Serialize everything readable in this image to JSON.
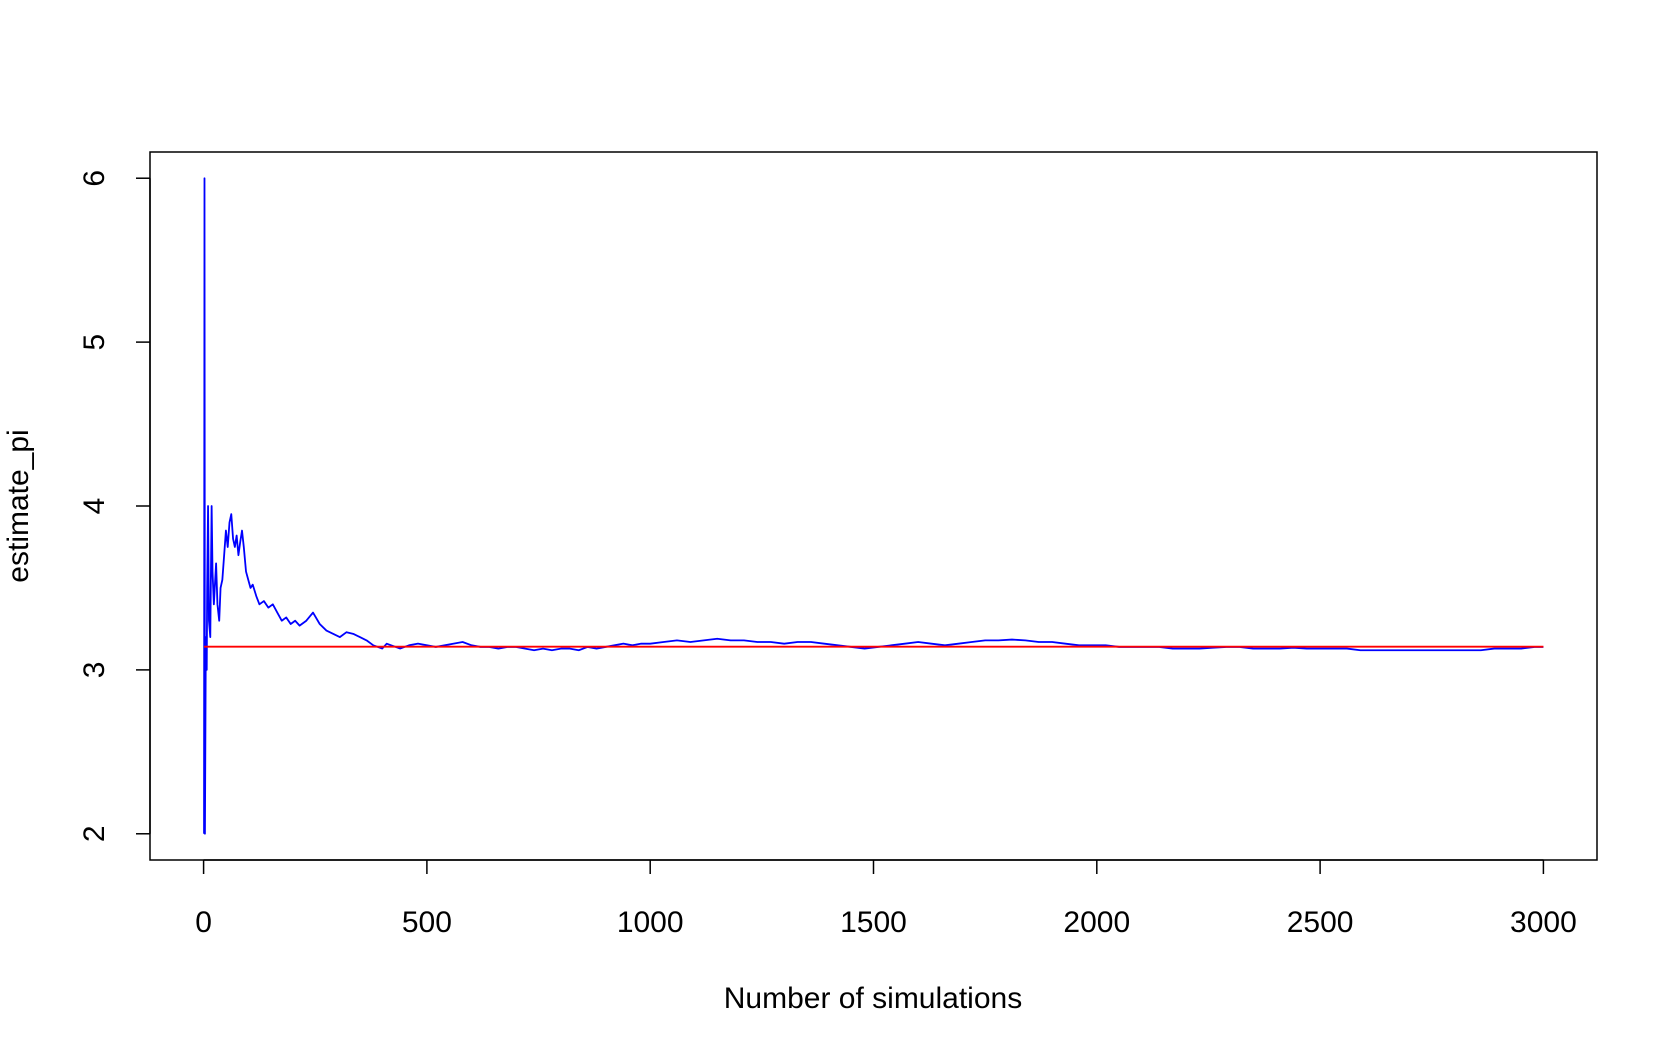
{
  "chart_data": {
    "type": "line",
    "title": "",
    "xlabel": "Number of simulations",
    "ylabel": "estimate_pi",
    "xlim": [
      -120,
      3120
    ],
    "ylim": [
      1.84,
      6.16
    ],
    "x_ticks": [
      0,
      500,
      1000,
      1500,
      2000,
      2500,
      3000
    ],
    "y_ticks": [
      2,
      3,
      4,
      5,
      6
    ],
    "x_tick_labels": [
      "0",
      "500",
      "1000",
      "1500",
      "2000",
      "2500",
      "3000"
    ],
    "y_tick_labels": [
      "2",
      "3",
      "4",
      "5",
      "6"
    ],
    "grid": false,
    "legend": "none",
    "series": [
      {
        "color": "#0000ff",
        "x": [
          1,
          2,
          3,
          5,
          7,
          8,
          10,
          12,
          15,
          18,
          20,
          23,
          25,
          28,
          31,
          35,
          38,
          42,
          46,
          50,
          54,
          58,
          62,
          66,
          70,
          74,
          78,
          82,
          86,
          90,
          95,
          100,
          105,
          110,
          118,
          125,
          135,
          145,
          155,
          165,
          175,
          185,
          195,
          205,
          215,
          230,
          245,
          260,
          275,
          290,
          305,
          320,
          335,
          350,
          365,
          380,
          390,
          400,
          410,
          420,
          430,
          440,
          450,
          460,
          480,
          500,
          520,
          540,
          560,
          580,
          600,
          620,
          640,
          660,
          680,
          700,
          720,
          740,
          760,
          780,
          800,
          820,
          840,
          860,
          880,
          900,
          920,
          940,
          960,
          980,
          1000,
          1030,
          1060,
          1090,
          1120,
          1150,
          1180,
          1210,
          1240,
          1270,
          1300,
          1330,
          1360,
          1390,
          1420,
          1450,
          1480,
          1510,
          1540,
          1570,
          1600,
          1630,
          1660,
          1690,
          1720,
          1750,
          1780,
          1810,
          1840,
          1870,
          1900,
          1930,
          1960,
          1990,
          2020,
          2050,
          2080,
          2110,
          2140,
          2170,
          2200,
          2230,
          2260,
          2290,
          2320,
          2350,
          2380,
          2410,
          2440,
          2470,
          2500,
          2530,
          2560,
          2590,
          2620,
          2650,
          2680,
          2710,
          2740,
          2770,
          2800,
          2830,
          2860,
          2890,
          2920,
          2950,
          2980,
          3000
        ],
        "y": [
          2.0,
          6.0,
          2.0,
          3.2,
          3.0,
          3.5,
          4.0,
          3.3,
          3.2,
          4.0,
          3.6,
          3.4,
          3.5,
          3.65,
          3.4,
          3.3,
          3.5,
          3.55,
          3.7,
          3.85,
          3.75,
          3.9,
          3.95,
          3.8,
          3.75,
          3.82,
          3.7,
          3.78,
          3.85,
          3.75,
          3.6,
          3.55,
          3.5,
          3.52,
          3.45,
          3.4,
          3.42,
          3.38,
          3.4,
          3.35,
          3.3,
          3.32,
          3.28,
          3.3,
          3.27,
          3.3,
          3.35,
          3.28,
          3.24,
          3.22,
          3.2,
          3.23,
          3.22,
          3.2,
          3.18,
          3.15,
          3.14,
          3.13,
          3.16,
          3.15,
          3.14,
          3.13,
          3.14,
          3.15,
          3.16,
          3.15,
          3.14,
          3.15,
          3.16,
          3.17,
          3.15,
          3.14,
          3.14,
          3.13,
          3.14,
          3.14,
          3.13,
          3.12,
          3.13,
          3.12,
          3.13,
          3.13,
          3.12,
          3.14,
          3.13,
          3.14,
          3.15,
          3.16,
          3.15,
          3.16,
          3.16,
          3.17,
          3.18,
          3.17,
          3.18,
          3.19,
          3.18,
          3.18,
          3.17,
          3.17,
          3.16,
          3.17,
          3.17,
          3.16,
          3.15,
          3.14,
          3.13,
          3.14,
          3.15,
          3.16,
          3.17,
          3.16,
          3.15,
          3.16,
          3.17,
          3.18,
          3.18,
          3.185,
          3.18,
          3.17,
          3.17,
          3.16,
          3.15,
          3.15,
          3.15,
          3.14,
          3.14,
          3.14,
          3.14,
          3.13,
          3.13,
          3.13,
          3.135,
          3.14,
          3.14,
          3.13,
          3.13,
          3.13,
          3.135,
          3.13,
          3.13,
          3.13,
          3.13,
          3.12,
          3.12,
          3.12,
          3.12,
          3.12,
          3.12,
          3.12,
          3.12,
          3.12,
          3.12,
          3.13,
          3.13,
          3.13,
          3.14,
          3.14
        ]
      },
      {
        "color": "#ff0000",
        "x": [
          1,
          3000
        ],
        "y": [
          3.14159,
          3.14159
        ]
      }
    ]
  }
}
